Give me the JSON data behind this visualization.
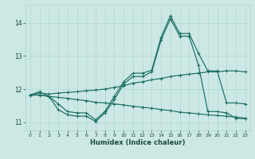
{
  "xlabel": "Humidex (Indice chaleur)",
  "bg_color": "#cce8e4",
  "line_color": "#1a6e62",
  "grid_color": "#b0d8d4",
  "xlim": [
    -0.5,
    23.5
  ],
  "ylim": [
    10.75,
    14.55
  ],
  "yticks": [
    11,
    12,
    13,
    14
  ],
  "xticks": [
    0,
    1,
    2,
    3,
    4,
    5,
    6,
    7,
    8,
    9,
    10,
    11,
    12,
    13,
    14,
    15,
    16,
    17,
    18,
    19,
    20,
    21,
    22,
    23
  ],
  "series": {
    "line1": {
      "x": [
        0,
        1,
        2,
        3,
        4,
        5,
        6,
        7,
        8,
        9,
        10,
        11,
        12,
        13,
        14,
        15,
        16,
        17,
        18,
        19,
        20,
        21,
        22,
        23
      ],
      "y": [
        11.82,
        11.92,
        11.78,
        11.55,
        11.32,
        11.28,
        11.28,
        11.07,
        11.33,
        11.78,
        12.22,
        12.48,
        12.48,
        12.57,
        13.57,
        14.22,
        13.68,
        13.68,
        13.08,
        12.55,
        12.55,
        11.58,
        11.58,
        11.55
      ]
    },
    "line2": {
      "x": [
        0,
        1,
        2,
        3,
        4,
        5,
        6,
        7,
        8,
        9,
        10,
        11,
        12,
        13,
        14,
        15,
        16,
        17,
        18,
        19,
        20,
        21,
        22,
        23
      ],
      "y": [
        11.82,
        11.82,
        11.78,
        11.38,
        11.22,
        11.18,
        11.18,
        11.02,
        11.28,
        11.68,
        12.15,
        12.38,
        12.38,
        12.52,
        13.48,
        14.12,
        13.6,
        13.6,
        12.72,
        11.32,
        11.32,
        11.28,
        11.12,
        11.1
      ]
    },
    "line3": {
      "x": [
        0,
        1,
        2,
        3,
        4,
        5,
        6,
        7,
        8,
        9,
        10,
        11,
        12,
        13,
        14,
        15,
        16,
        17,
        18,
        19,
        20,
        21,
        22,
        23
      ],
      "y": [
        11.82,
        11.88,
        11.85,
        11.88,
        11.9,
        11.92,
        11.95,
        11.97,
        12.0,
        12.05,
        12.1,
        12.18,
        12.22,
        12.28,
        12.32,
        12.38,
        12.42,
        12.45,
        12.48,
        12.52,
        12.52,
        12.55,
        12.55,
        12.52
      ]
    },
    "line4": {
      "x": [
        0,
        1,
        2,
        3,
        4,
        5,
        6,
        7,
        8,
        9,
        10,
        11,
        12,
        13,
        14,
        15,
        16,
        17,
        18,
        19,
        20,
        21,
        22,
        23
      ],
      "y": [
        11.82,
        11.82,
        11.78,
        11.75,
        11.72,
        11.68,
        11.65,
        11.6,
        11.58,
        11.55,
        11.52,
        11.48,
        11.45,
        11.42,
        11.38,
        11.35,
        11.3,
        11.28,
        11.25,
        11.22,
        11.2,
        11.18,
        11.15,
        11.12
      ]
    }
  }
}
